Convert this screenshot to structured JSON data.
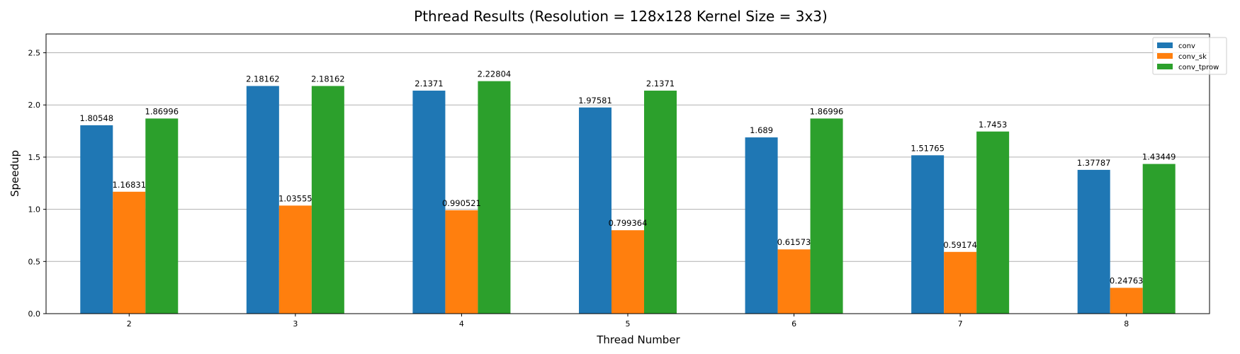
{
  "chart_data": {
    "type": "bar",
    "title": "Pthread Results (Resolution = 128x128 Kernel Size = 3x3)",
    "xlabel": "Thread Number",
    "ylabel": "Speedup",
    "categories": [
      "2",
      "3",
      "4",
      "5",
      "6",
      "7",
      "8"
    ],
    "series": [
      {
        "name": "conv",
        "color": "#1f77b4",
        "values": [
          1.80548,
          2.18162,
          2.1371,
          1.97581,
          1.689,
          1.51765,
          1.37787
        ],
        "labels": [
          "1.80548",
          "2.18162",
          "2.1371",
          "1.97581",
          "1.689",
          "1.51765",
          "1.37787"
        ]
      },
      {
        "name": "conv_sk",
        "color": "#ff7f0e",
        "values": [
          1.16831,
          1.03555,
          0.990521,
          0.799364,
          0.61573,
          0.59174,
          0.24763
        ],
        "labels": [
          "1.16831",
          "1.03555",
          "0.990521",
          "0.799364",
          "0.61573",
          "0.59174",
          "0.24763"
        ]
      },
      {
        "name": "conv_tprow",
        "color": "#2ca02c",
        "values": [
          1.86996,
          2.18162,
          2.22804,
          2.1371,
          1.86996,
          1.7453,
          1.43449
        ],
        "labels": [
          "1.86996",
          "2.18162",
          "2.22804",
          "2.1371",
          "1.86996",
          "1.7453",
          "1.43449"
        ]
      }
    ],
    "yticks": [
      "0.0",
      "0.5",
      "1.0",
      "1.5",
      "2.0",
      "2.5"
    ],
    "ylim": [
      0,
      2.68
    ],
    "grid": "horizontal",
    "legend_position": "top-right"
  }
}
